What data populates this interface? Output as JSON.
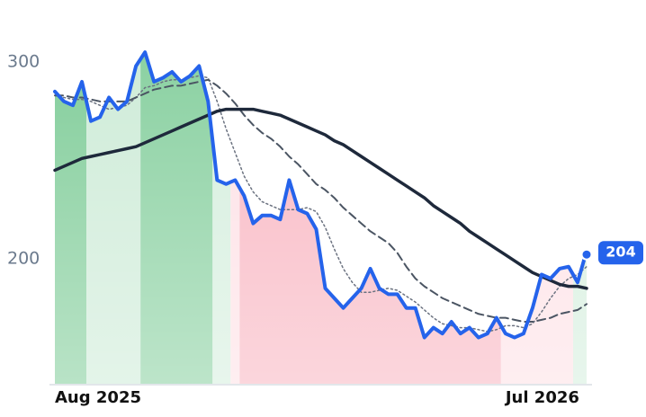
{
  "chart_data": {
    "type": "line",
    "categories": [
      "Aug 2025",
      null,
      null,
      null,
      null,
      null,
      null,
      null,
      null,
      null,
      null,
      null,
      null,
      null,
      null,
      null,
      null,
      null,
      null,
      null,
      null,
      null,
      null,
      null,
      null,
      null,
      null,
      null,
      null,
      null,
      null,
      null,
      null,
      null,
      null,
      null,
      null,
      null,
      null,
      null,
      null,
      null,
      null,
      null,
      null,
      null,
      null,
      null,
      null,
      null,
      "Jul 2026",
      null,
      null,
      null,
      null,
      null,
      null,
      null,
      null,
      null
    ],
    "series": [
      {
        "color": "#2563eb",
        "style": "solid",
        "values": [
          285,
          280,
          278,
          290,
          270,
          272,
          282,
          276,
          280,
          298,
          305,
          290,
          292,
          295,
          290,
          293,
          298,
          280,
          240,
          238,
          240,
          232,
          218,
          222,
          222,
          220,
          240,
          225,
          223,
          215,
          185,
          180,
          175,
          180,
          185,
          195,
          185,
          182,
          182,
          175,
          175,
          160,
          165,
          162,
          168,
          162,
          165,
          160,
          162,
          170,
          162,
          160,
          162,
          175,
          192,
          190,
          195,
          196,
          188,
          204
        ]
      },
      {
        "color": "#1e293b",
        "style": "solid",
        "values": [
          245,
          247,
          249,
          251,
          252,
          253,
          254,
          255,
          256,
          257,
          259,
          261,
          263,
          265,
          267,
          269,
          271,
          273,
          275,
          276,
          276,
          276,
          276,
          275,
          274,
          273,
          271,
          269,
          267,
          265,
          263,
          260,
          258,
          255,
          252,
          249,
          246,
          243,
          240,
          237,
          234,
          231,
          227,
          224,
          221,
          218,
          214,
          211,
          208,
          205,
          202,
          199,
          196,
          193,
          191,
          189,
          187,
          186,
          186,
          185
        ]
      },
      {
        "color": "#4b5563",
        "style": "dashed",
        "values": [
          283,
          283,
          282,
          282,
          281,
          280,
          280,
          280,
          280,
          282,
          284,
          286,
          287,
          288,
          288,
          289,
          290,
          291,
          288,
          284,
          279,
          273,
          268,
          264,
          261,
          257,
          252,
          248,
          243,
          238,
          235,
          231,
          226,
          222,
          218,
          214,
          211,
          208,
          203,
          196,
          190,
          186,
          183,
          180,
          178,
          176,
          174,
          172,
          171,
          170,
          170,
          169,
          168,
          168,
          169,
          170,
          172,
          173,
          174,
          177
        ]
      },
      {
        "color": "#6b7280",
        "style": "dotted",
        "values": [
          283,
          282,
          281,
          281,
          280,
          278,
          276,
          277,
          278,
          282,
          287,
          288,
          290,
          291,
          291,
          292,
          293,
          292,
          280,
          266,
          254,
          242,
          234,
          229,
          227,
          225,
          225,
          225,
          226,
          224,
          216,
          205,
          195,
          188,
          183,
          183,
          184,
          185,
          184,
          181,
          178,
          174,
          170,
          167,
          166,
          165,
          165,
          164,
          163,
          164,
          166,
          166,
          165,
          167,
          173,
          180,
          186,
          190,
          192,
          196
        ]
      }
    ],
    "bands": [
      {
        "from": 0,
        "to": 3,
        "color": "#7fcc98"
      },
      {
        "from": 4,
        "to": 9,
        "color": "#cdebd7"
      },
      {
        "from": 10,
        "to": 17,
        "color": "#86cf9e"
      },
      {
        "from": 18,
        "to": 19,
        "color": "#d4eedd"
      },
      {
        "from": 20,
        "to": 20,
        "color": "#fde0e5"
      },
      {
        "from": 21,
        "to": 49,
        "color": "#f8b4c0"
      },
      {
        "from": 50,
        "to": 57,
        "color": "#fde0e5"
      },
      {
        "from": 58,
        "to": 59,
        "color": "#d4eedd"
      }
    ],
    "ylim": [
      136.5,
      322.4
    ],
    "yticks": [
      200,
      300
    ],
    "grid": false
  }
}
